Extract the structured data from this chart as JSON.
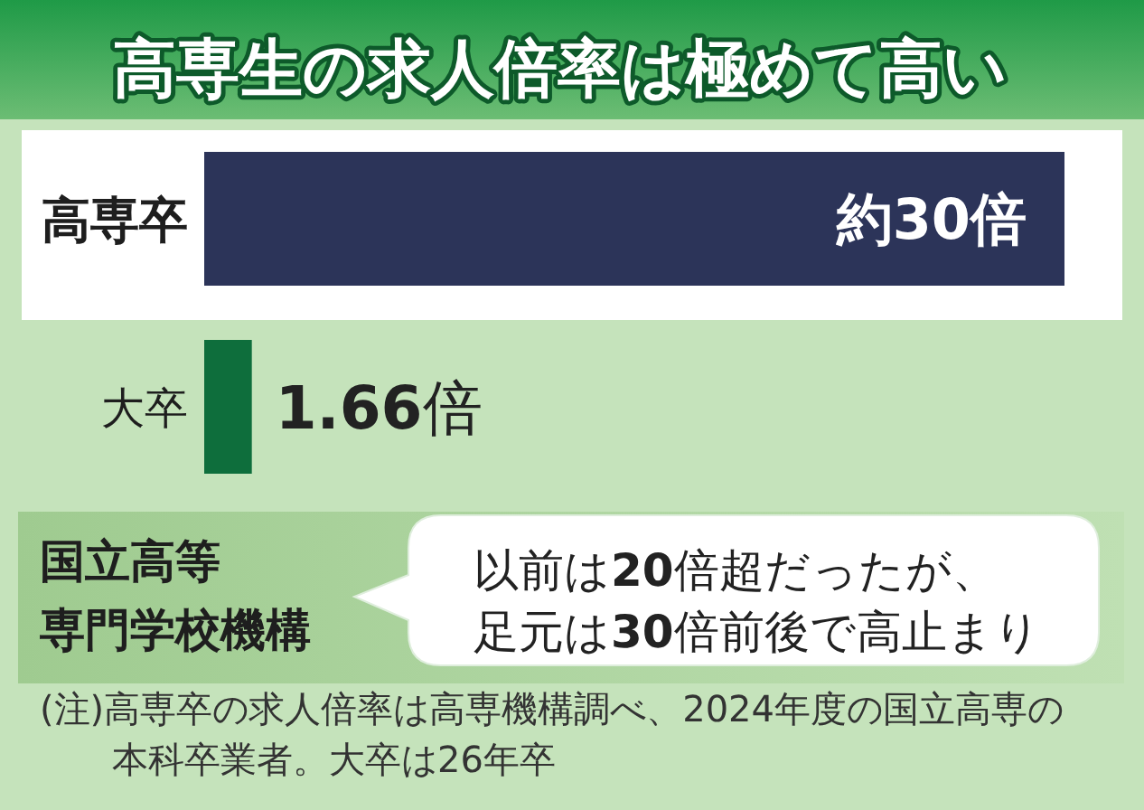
{
  "chart_data": {
    "type": "bar",
    "orientation": "horizontal",
    "title": "高専生の求人倍率は極めて高い",
    "categories": [
      "高専卒",
      "大卒"
    ],
    "values": [
      30,
      1.66
    ],
    "colors": [
      "#2c3459",
      "#0e6e3c"
    ],
    "value_labels": [
      "約30倍",
      "**1.66**倍"
    ],
    "annotations": [
      "国立高等",
      "専門学校機構",
      "以前は**20**倍超だったが、足元は**30**倍前後で高止まり",
      "(注)高専卒の求人倍率は高専機構調べ、2024年度の国立高専の本科卒業者。大卒は26年卒"
    ]
  }
}
